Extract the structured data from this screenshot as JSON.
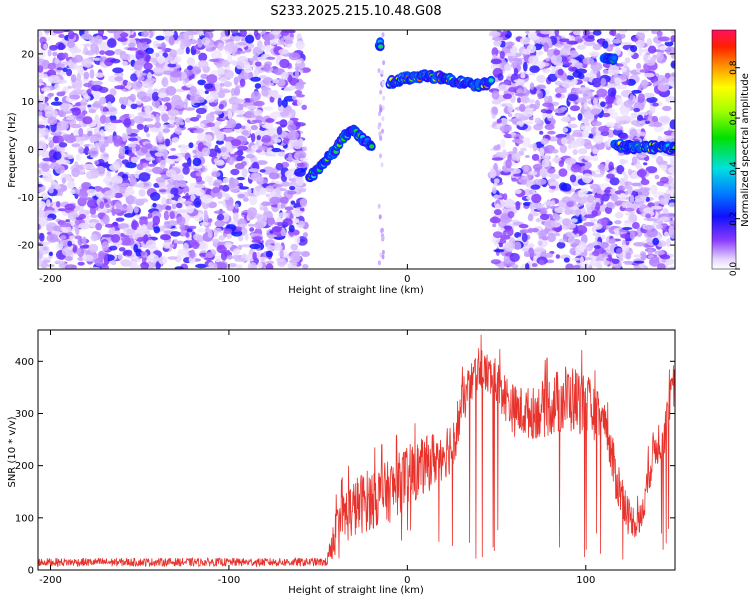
{
  "title": "S233.2025.215.10.48.G08",
  "colors": {
    "snr_line": "#e8322c",
    "background": "#ffffff"
  },
  "chart_data": [
    {
      "type": "heatmap",
      "xlabel": "Height of straight line (km)",
      "ylabel": "Frequency (Hz)",
      "xlim": [
        -207,
        150
      ],
      "ylim": [
        -25,
        25
      ],
      "xticks": [
        "-200",
        "-100",
        "0",
        "100"
      ],
      "yticks": [
        "20",
        "10",
        "0",
        "-10",
        "-20"
      ],
      "colorbar": {
        "label": "Normalized spectral amplitude",
        "range": [
          0,
          0.95
        ],
        "ticks": [
          "0.0",
          "0.2",
          "0.4",
          "0.6",
          "0.8"
        ]
      },
      "noise_regions": [
        [
          -207,
          -57
        ],
        [
          48,
          105
        ],
        [
          105,
          150
        ]
      ],
      "empty_regions": [
        [
          -57,
          48
        ]
      ],
      "ridges": [
        {
          "points": [
            [
              -55,
              -6
            ],
            [
              -50,
              -4
            ],
            [
              -45,
              -2
            ],
            [
              -40,
              0
            ],
            [
              -35,
              3
            ],
            [
              -30,
              4
            ],
            [
              -25,
              2
            ],
            [
              -20,
              1
            ]
          ],
          "peak": 0.6
        },
        {
          "points": [
            [
              -10,
              14
            ],
            [
              0,
              15
            ],
            [
              10,
              15.5
            ],
            [
              20,
              15
            ],
            [
              30,
              14
            ],
            [
              40,
              13.5
            ],
            [
              47,
              14
            ]
          ],
          "peak": 0.9
        },
        {
          "points": [
            [
              -16,
              22
            ],
            [
              -15,
              22
            ]
          ],
          "peak": 0.5
        },
        {
          "points": [
            [
              110,
              19
            ],
            [
              116,
              19
            ]
          ],
          "peak": 0.6
        },
        {
          "points": [
            [
              116,
              1
            ],
            [
              125,
              0.5
            ],
            [
              135,
              0.5
            ],
            [
              145,
              0.3
            ],
            [
              150,
              0.3
            ]
          ],
          "peak": 0.75
        }
      ]
    },
    {
      "type": "line",
      "xlabel": "Height of straight line (km)",
      "ylabel": "SNR (10 * v/v)",
      "xlim": [
        -207,
        150
      ],
      "ylim": [
        0,
        460
      ],
      "xticks": [
        "-200",
        "-100",
        "0",
        "100"
      ],
      "yticks": [
        "0",
        "100",
        "200",
        "300",
        "400"
      ],
      "envelope": {
        "x": [
          -207,
          -100,
          -45,
          -42,
          -35,
          -25,
          -10,
          0,
          10,
          25,
          32,
          40,
          50,
          60,
          70,
          80,
          90,
          100,
          110,
          118,
          125,
          130,
          138,
          145,
          150
        ],
        "y": [
          15,
          15,
          15,
          60,
          105,
          130,
          150,
          180,
          200,
          240,
          330,
          390,
          360,
          305,
          300,
          315,
          330,
          320,
          280,
          165,
          100,
          85,
          230,
          270,
          370
        ],
        "amp": [
          8,
          8,
          8,
          40,
          55,
          60,
          60,
          60,
          55,
          55,
          45,
          40,
          45,
          50,
          50,
          60,
          70,
          60,
          45,
          50,
          30,
          35,
          40,
          50,
          45
        ]
      }
    }
  ]
}
